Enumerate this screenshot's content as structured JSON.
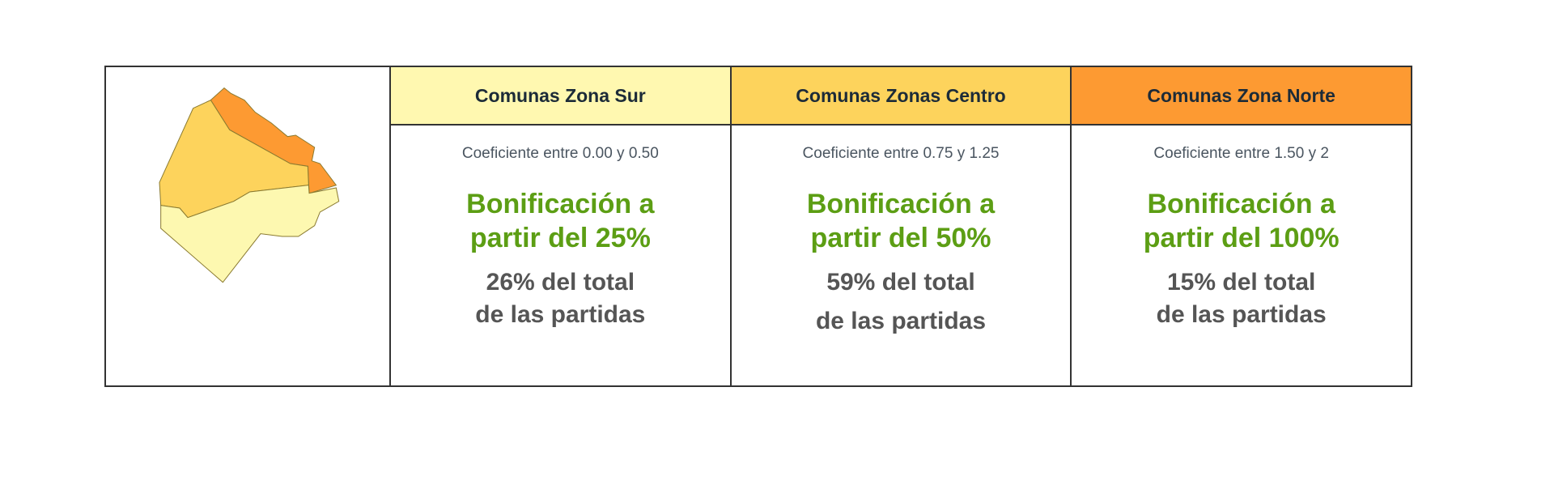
{
  "colors": {
    "sur": "#fff8b0",
    "centro": "#fdd35c",
    "norte": "#fd9a32",
    "green": "#5c9e14"
  },
  "map": {
    "icon": "buenos-aires-city-map"
  },
  "zones": [
    {
      "header": "Comunas Zona Sur",
      "coef": "Coeficiente entre 0.00 y 0.50",
      "bono1": "Bonificación a",
      "bono2": "partir del 25%",
      "total1": "26% del total",
      "total2": "de las partidas"
    },
    {
      "header": "Comunas Zonas Centro",
      "coef": "Coeficiente entre 0.75 y 1.25",
      "bono1": "Bonificación a",
      "bono2": "partir del 50%",
      "total1": "59% del total",
      "total2": "de las partidas"
    },
    {
      "header": "Comunas Zona Norte",
      "coef": "Coeficiente entre 1.50 y 2",
      "bono1": "Bonificación a",
      "bono2": "partir del 100%",
      "total1": "15% del total",
      "total2": "de las partidas"
    }
  ]
}
